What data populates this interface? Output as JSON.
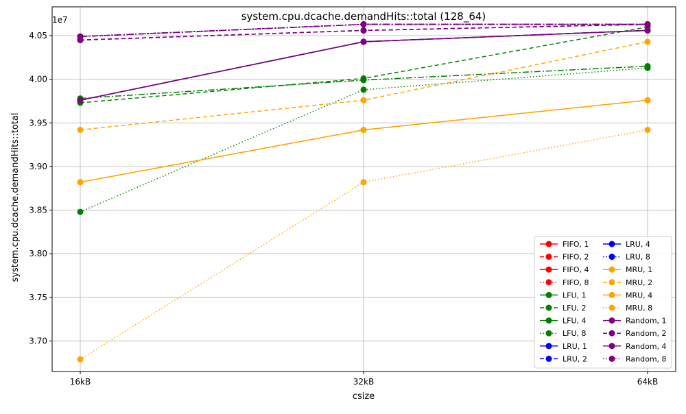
{
  "chart_data": {
    "type": "line",
    "title": "system.cpu.dcache.demandHits::total (128_64)",
    "xlabel": "csize",
    "ylabel": "system.cpu.dcache.demandHits::total",
    "y_offset_label": "1e7",
    "categories": [
      "16kB",
      "32kB",
      "64kB"
    ],
    "ylim": [
      3.665,
      4.083
    ],
    "yticks": [
      3.7,
      3.75,
      3.8,
      3.85,
      3.9,
      3.95,
      4.0,
      4.05
    ],
    "ytick_labels": [
      "3.70",
      "3.75",
      "3.80",
      "3.85",
      "3.90",
      "3.95",
      "4.00",
      "4.05"
    ],
    "grid": true,
    "legend_position": "lower-right",
    "legend_columns": 2,
    "series": [
      {
        "name": "FIFO, 1",
        "color": "#ff0000",
        "dash": "solid",
        "values": [
          3.976,
          4.043,
          4.056
        ]
      },
      {
        "name": "FIFO, 2",
        "color": "#ff0000",
        "dash": "dashed",
        "values": [
          4.045,
          4.056,
          4.063
        ]
      },
      {
        "name": "FIFO, 4",
        "color": "#ff0000",
        "dash": "dashdot",
        "values": [
          4.049,
          4.063,
          4.063
        ]
      },
      {
        "name": "FIFO, 8",
        "color": "#ff0000",
        "dash": "dotted",
        "values": [
          4.049,
          4.063,
          4.063
        ]
      },
      {
        "name": "LFU, 1",
        "color": "#008000",
        "dash": "solid",
        "values": [
          3.976,
          4.043,
          4.056
        ]
      },
      {
        "name": "LFU, 2",
        "color": "#008000",
        "dash": "dashed",
        "values": [
          3.973,
          4.001,
          4.06
        ]
      },
      {
        "name": "LFU, 4",
        "color": "#008000",
        "dash": "dashdot",
        "values": [
          3.978,
          3.999,
          4.015
        ]
      },
      {
        "name": "LFU, 8",
        "color": "#008000",
        "dash": "dotted",
        "values": [
          3.848,
          3.988,
          4.013
        ]
      },
      {
        "name": "LRU, 1",
        "color": "#0000ff",
        "dash": "solid",
        "values": [
          3.976,
          4.043,
          4.056
        ]
      },
      {
        "name": "LRU, 2",
        "color": "#0000ff",
        "dash": "dashed",
        "values": [
          4.045,
          4.056,
          4.063
        ]
      },
      {
        "name": "LRU, 4",
        "color": "#0000ff",
        "dash": "dashdot",
        "values": [
          4.049,
          4.063,
          4.063
        ]
      },
      {
        "name": "LRU, 8",
        "color": "#0000ff",
        "dash": "dotted",
        "values": [
          4.049,
          4.063,
          4.063
        ]
      },
      {
        "name": "MRU, 1",
        "color": "#ffa500",
        "dash": "solid",
        "values": [
          3.882,
          3.942,
          3.976
        ]
      },
      {
        "name": "MRU, 2",
        "color": "#ffa500",
        "dash": "dashed",
        "values": [
          3.942,
          3.976,
          4.043
        ]
      },
      {
        "name": "MRU, 4",
        "color": "#ffa500",
        "dash": "dashdot",
        "values": [
          3.882,
          3.942,
          3.976
        ]
      },
      {
        "name": "MRU, 8",
        "color": "#ffa500",
        "dash": "dotted",
        "values": [
          3.679,
          3.882,
          3.942
        ]
      },
      {
        "name": "Random, 1",
        "color": "#800080",
        "dash": "solid",
        "values": [
          3.976,
          4.043,
          4.056
        ]
      },
      {
        "name": "Random, 2",
        "color": "#800080",
        "dash": "dashed",
        "values": [
          4.045,
          4.056,
          4.063
        ]
      },
      {
        "name": "Random, 4",
        "color": "#800080",
        "dash": "dashdot",
        "values": [
          4.049,
          4.063,
          4.063
        ]
      },
      {
        "name": "Random, 8",
        "color": "#800080",
        "dash": "dotted",
        "values": [
          4.049,
          4.063,
          4.063
        ]
      }
    ]
  }
}
